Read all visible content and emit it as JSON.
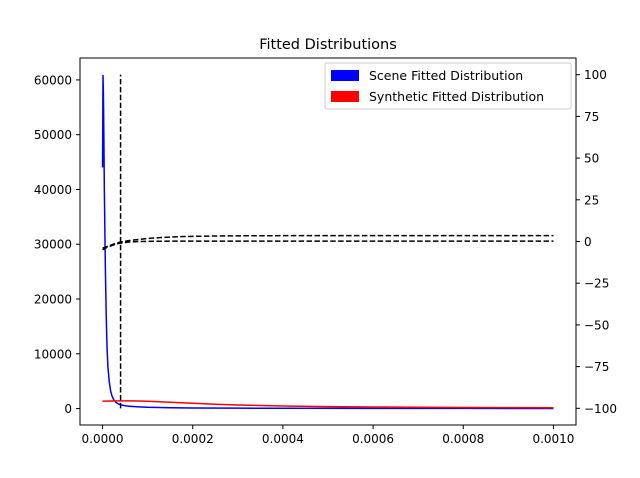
{
  "chart_data": {
    "type": "line",
    "title": "Fitted Distributions",
    "xlabel": "",
    "ylabel": "",
    "y2label": "",
    "xlim": [
      -5e-05,
      0.00105
    ],
    "ylim": [
      -3000,
      64000
    ],
    "y2lim": [
      -110,
      110
    ],
    "x_ticks": [
      0.0,
      0.0002,
      0.0004,
      0.0006,
      0.0008,
      0.001
    ],
    "x_tick_labels": [
      "0.0000",
      "0.0002",
      "0.0004",
      "0.0006",
      "0.0008",
      "0.0010"
    ],
    "y_ticks": [
      0,
      10000,
      20000,
      30000,
      40000,
      50000,
      60000
    ],
    "y_tick_labels": [
      "0",
      "10000",
      "20000",
      "30000",
      "40000",
      "50000",
      "60000"
    ],
    "y2_ticks": [
      -100,
      -75,
      -50,
      -25,
      0,
      25,
      50,
      75,
      100
    ],
    "y2_tick_labels": [
      "−100",
      "−75",
      "−50",
      "−25",
      "0",
      "25",
      "50",
      "75",
      "100"
    ],
    "legend": {
      "position": "upper right",
      "entries": [
        {
          "label": "Scene Fitted Distribution",
          "color": "#0000ff"
        },
        {
          "label": "Synthetic Fitted Distribution",
          "color": "#ff0000"
        }
      ]
    },
    "series": [
      {
        "name": "Scene Fitted Distribution",
        "axis": "left",
        "color": "#0000ff",
        "style": "solid",
        "x": [
          0.0,
          5e-07,
          1e-06,
          2e-06,
          3e-06,
          4e-06,
          6e-06,
          8e-06,
          1e-05,
          1.2e-05,
          1.5e-05,
          1.8e-05,
          2.1e-05,
          2.5e-05,
          3e-05,
          3.5e-05,
          4e-05,
          5e-05,
          6e-05,
          8e-05,
          0.0001,
          0.00015,
          0.0002,
          0.0003,
          0.0004,
          0.0006,
          0.0008,
          0.001
        ],
        "y": [
          44000,
          52000,
          60800,
          57000,
          49000,
          40000,
          27000,
          17500,
          11000,
          7500,
          4800,
          3200,
          2300,
          1600,
          1100,
          850,
          700,
          520,
          420,
          300,
          230,
          150,
          110,
          75,
          55,
          35,
          25,
          20
        ]
      },
      {
        "name": "Synthetic Fitted Distribution",
        "axis": "left",
        "color": "#ff0000",
        "style": "solid",
        "x": [
          0.0,
          2e-05,
          4e-05,
          6e-05,
          8e-05,
          0.0001,
          0.00012,
          0.00015,
          0.0002,
          0.00025,
          0.0003,
          0.00035,
          0.0004,
          0.0005,
          0.0006,
          0.0007,
          0.0008,
          0.0009,
          0.001
        ],
        "y": [
          1350,
          1380,
          1400,
          1400,
          1380,
          1330,
          1260,
          1150,
          960,
          800,
          660,
          550,
          470,
          360,
          290,
          240,
          200,
          170,
          150
        ]
      },
      {
        "name": "",
        "axis": "right",
        "color": "#000000",
        "style": "dashed",
        "x": [
          0.0,
          1e-05,
          2e-05,
          3e-05,
          4e-05,
          6e-05,
          8e-05,
          0.0001,
          0.00013,
          0.00016,
          0.0002,
          0.00025,
          0.0003,
          0.0004,
          0.0005,
          0.0006,
          0.0008,
          0.001
        ],
        "y": [
          -4,
          -3,
          -2,
          -1,
          -0.3,
          0.6,
          1.2,
          1.8,
          2.4,
          2.8,
          3.1,
          3.3,
          3.4,
          3.5,
          3.5,
          3.5,
          3.5,
          3.5
        ]
      },
      {
        "name": "",
        "axis": "right",
        "color": "#000000",
        "style": "dashed",
        "x": [
          0.0,
          1e-05,
          2e-05,
          3e-05,
          4e-05,
          5e-05,
          6e-05,
          8e-05,
          0.0001,
          0.00015,
          0.0002,
          0.0003,
          0.0004,
          0.0006,
          0.0008,
          0.001
        ],
        "y": [
          -5,
          -3.5,
          -2.5,
          -1.5,
          -1,
          -0.6,
          -0.3,
          0,
          0.1,
          0.2,
          0.2,
          0.2,
          0.2,
          0.2,
          0.2,
          0.2
        ]
      },
      {
        "name": "",
        "axis": "right",
        "color": "#000000",
        "style": "dashed",
        "x": [
          4e-05,
          4e-05
        ],
        "y": [
          -100,
          100
        ]
      }
    ],
    "grid": false
  }
}
